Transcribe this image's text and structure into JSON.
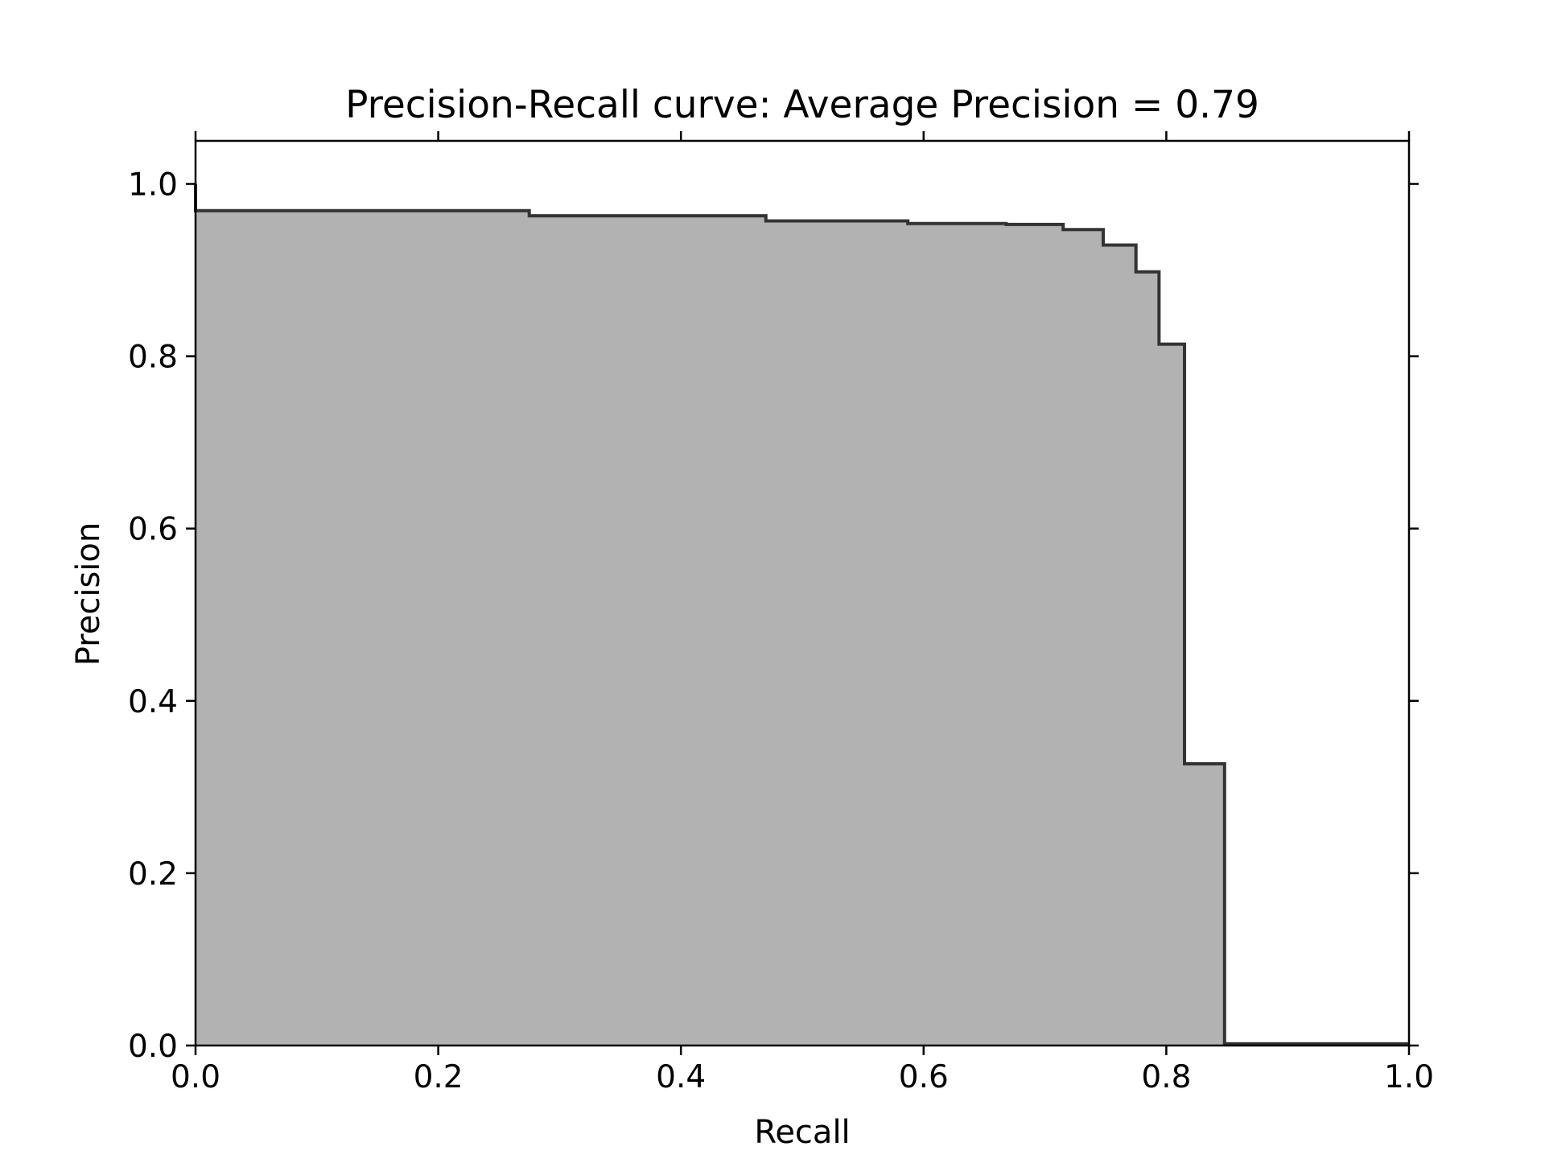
{
  "chart_data": {
    "type": "area",
    "step": "post",
    "title": "Precision-Recall curve: Average Precision = 0.79",
    "xlabel": "Recall",
    "ylabel": "Precision",
    "xlim": [
      0.0,
      1.0
    ],
    "ylim": [
      0.0,
      1.05
    ],
    "xticks": [
      "0.0",
      "0.2",
      "0.4",
      "0.6",
      "0.8",
      "1.0"
    ],
    "yticks": [
      "0.0",
      "0.2",
      "0.4",
      "0.6",
      "0.8",
      "1.0"
    ],
    "grid": false,
    "series": [
      {
        "recall": [
          0.0,
          0.0,
          0.275,
          0.47,
          0.587,
          0.668,
          0.715,
          0.748,
          0.775,
          0.794,
          0.815,
          0.848,
          1.0
        ],
        "precision": [
          1.0,
          0.969,
          0.963,
          0.957,
          0.954,
          0.953,
          0.947,
          0.929,
          0.898,
          0.814,
          0.327,
          0.002,
          0.002
        ]
      }
    ],
    "colors": {
      "fill": "#b2b2b2",
      "line": "#333333",
      "axes": "#000000"
    }
  }
}
